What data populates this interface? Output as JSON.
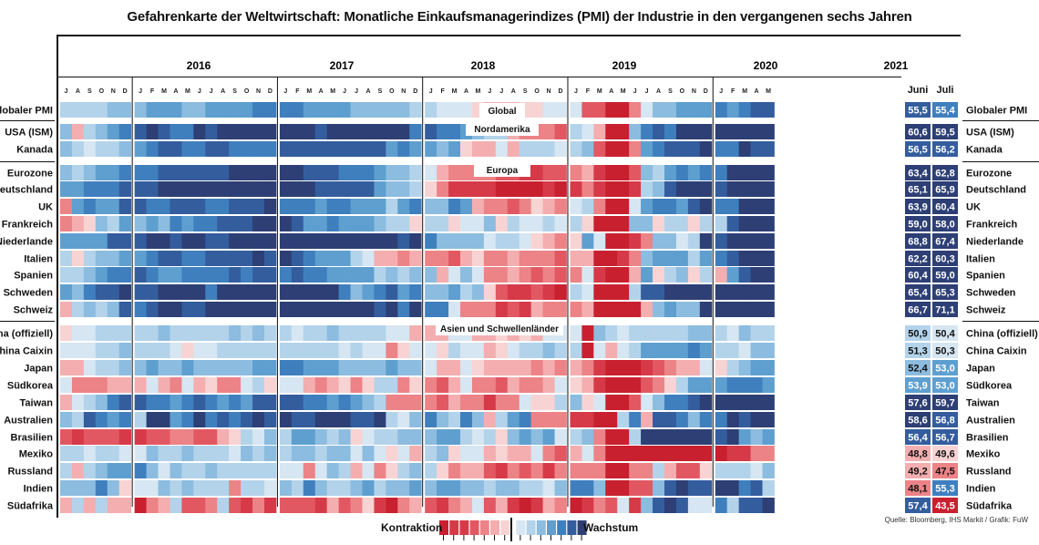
{
  "title": "Gefahrenkarte der Weltwirtschaft: Monatliche Einkaufsmanagerindizes (PMI) der Industrie in den vergangenen sechs Jahren",
  "source": "Quelle: Bloomberg, IHS Markit / Grafik: FuW",
  "legend": {
    "left": "Kontraktion",
    "right": "Wachstum"
  },
  "colors": {
    "c1": "#c8202f",
    "c2": "#d63a48",
    "c3": "#e25862",
    "c4": "#ec8387",
    "c5": "#f4aeb0",
    "c6": "#f8d3d3",
    "g1": "#d6e6f2",
    "g2": "#b3d3ea",
    "g3": "#8cbcdf",
    "g4": "#5e9fcf",
    "g5": "#3f7fbe",
    "g6": "#345d9e",
    "g7": "#2d3f75"
  },
  "chart_data": {
    "type": "heatmap",
    "years": [
      "2016",
      "2017",
      "2018",
      "2019",
      "2020",
      "2021"
    ],
    "months": [
      "J",
      "F",
      "M",
      "A",
      "M",
      "J",
      "J",
      "A",
      "S",
      "O",
      "N",
      "D"
    ],
    "latest_headers": [
      "Juni",
      "Juli"
    ],
    "groups": [
      "Global",
      "Nordamerika",
      "Europa",
      "Asien und Schwellenländer"
    ],
    "rows": [
      {
        "name": "Globaler PMI",
        "group": "Global",
        "juni": "55,5",
        "juli": "55,4"
      },
      {
        "name": "USA (ISM)",
        "group": "Nordamerika",
        "juni": "60,6",
        "juli": "59,5"
      },
      {
        "name": "Kanada",
        "group": "Nordamerika",
        "juni": "56,5",
        "juli": "56,2"
      },
      {
        "name": "Eurozone",
        "group": "Europa",
        "juni": "63,4",
        "juli": "62,8"
      },
      {
        "name": "Deutschland",
        "group": "Europa",
        "juni": "65,1",
        "juli": "65,9"
      },
      {
        "name": "UK",
        "group": "Europa",
        "juni": "63,9",
        "juli": "60,4"
      },
      {
        "name": "Frankreich",
        "group": "Europa",
        "juni": "59,0",
        "juli": "58,0"
      },
      {
        "name": "Niederlande",
        "group": "Europa",
        "juni": "68,8",
        "juli": "67,4"
      },
      {
        "name": "Italien",
        "group": "Europa",
        "juni": "62,2",
        "juli": "60,3"
      },
      {
        "name": "Spanien",
        "group": "Europa",
        "juni": "60,4",
        "juli": "59,0"
      },
      {
        "name": "Schweden",
        "group": "Europa",
        "juni": "65,4",
        "juli": "65,3"
      },
      {
        "name": "Schweiz",
        "group": "Europa",
        "juni": "66,7",
        "juli": "71,1"
      },
      {
        "name": "China (offiziell)",
        "group": "Asien und Schwellenländer",
        "juni": "50,9",
        "juli": "50,4"
      },
      {
        "name": "China Caixin",
        "group": "Asien und Schwellenländer",
        "juni": "51,3",
        "juli": "50,3"
      },
      {
        "name": "Japan",
        "group": "Asien und Schwellenländer",
        "juni": "52,4",
        "juli": "53,0"
      },
      {
        "name": "Südkorea",
        "group": "Asien und Schwellenländer",
        "juni": "53,9",
        "juli": "53,0"
      },
      {
        "name": "Taiwan",
        "group": "Asien und Schwellenländer",
        "juni": "57,6",
        "juli": "59,7"
      },
      {
        "name": "Australien",
        "group": "Asien und Schwellenländer",
        "juni": "58,6",
        "juli": "56,8"
      },
      {
        "name": "Brasilien",
        "group": "Asien und Schwellenländer",
        "juni": "56,4",
        "juli": "56,7"
      },
      {
        "name": "Mexiko",
        "group": "Asien und Schwellenländer",
        "juni": "48,8",
        "juli": "49,6"
      },
      {
        "name": "Russland",
        "group": "Asien und Schwellenländer",
        "juni": "49,2",
        "juli": "47,5"
      },
      {
        "name": "Indien",
        "group": "Asien und Schwellenländer",
        "juni": "48,1",
        "juli": "55,3"
      },
      {
        "name": "Südafrika",
        "group": "Asien und Schwellenländer",
        "juni": "57,4",
        "juli": "43,5"
      }
    ],
    "colorscale": {
      "contraction": "below 50",
      "growth": "above 50"
    },
    "grid": false
  }
}
